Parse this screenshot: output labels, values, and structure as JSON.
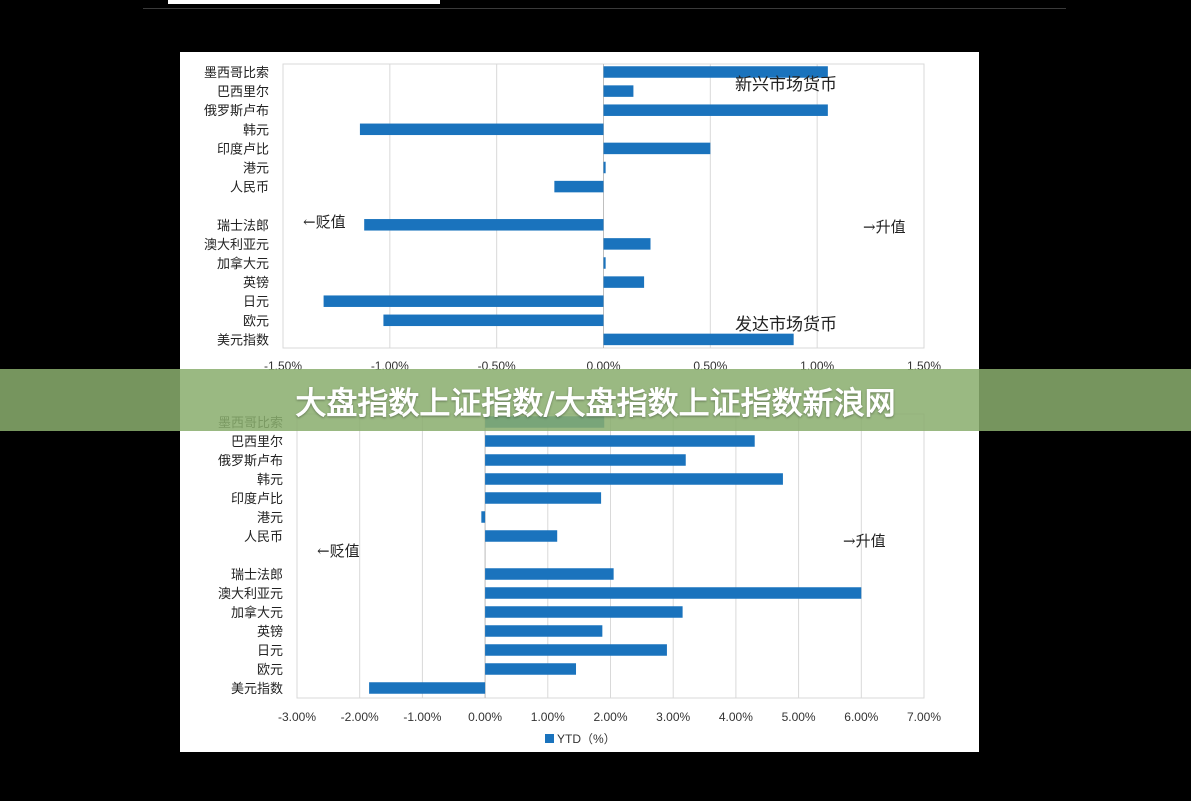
{
  "banner": {
    "title": "大盘指数上证指数/大盘指数上证指数新浪网"
  },
  "colors": {
    "bar": "#1a73bd",
    "grid": "#d9d9d9",
    "banner": "#89ad6e"
  },
  "chart_data": [
    {
      "type": "bar",
      "orientation": "horizontal",
      "categories": [
        "墨西哥比索",
        "巴西里尔",
        "俄罗斯卢布",
        "韩元",
        "印度卢比",
        "港元",
        "人民币",
        "",
        "瑞士法郎",
        "澳大利亚元",
        "加拿大元",
        "英镑",
        "日元",
        "欧元",
        "美元指数"
      ],
      "values": [
        1.05,
        0.14,
        1.05,
        -1.14,
        0.5,
        0.01,
        -0.23,
        null,
        -1.12,
        0.22,
        0.01,
        0.19,
        -1.31,
        -1.03,
        0.89
      ],
      "xlim": [
        -1.5,
        1.5
      ],
      "ticks": [
        "-1.50%",
        "-1.00%",
        "-0.50%",
        "0.00%",
        "0.50%",
        "1.00%",
        "1.50%"
      ],
      "tick_values": [
        -1.5,
        -1.0,
        -0.5,
        0.0,
        0.5,
        1.0,
        1.5
      ],
      "grid": true,
      "annotations": {
        "left": "←贬值",
        "right": "→升值",
        "group_top": "新兴市场货币",
        "group_bottom": "发达市场货币"
      }
    },
    {
      "type": "bar",
      "orientation": "horizontal",
      "categories": [
        "墨西哥比索",
        "巴西里尔",
        "俄罗斯卢布",
        "韩元",
        "印度卢比",
        "港元",
        "人民币",
        "",
        "瑞士法郎",
        "澳大利亚元",
        "加拿大元",
        "英镑",
        "日元",
        "欧元",
        "美元指数"
      ],
      "values": [
        1.9,
        4.3,
        3.2,
        4.75,
        1.85,
        -0.06,
        1.15,
        null,
        2.05,
        6.0,
        3.15,
        1.87,
        2.9,
        1.45,
        -1.85
      ],
      "xlim": [
        -3.0,
        7.0
      ],
      "ticks": [
        "-3.00%",
        "-2.00%",
        "-1.00%",
        "0.00%",
        "1.00%",
        "2.00%",
        "3.00%",
        "4.00%",
        "5.00%",
        "6.00%",
        "7.00%"
      ],
      "tick_values": [
        -3,
        -2,
        -1,
        0,
        1,
        2,
        3,
        4,
        5,
        6,
        7
      ],
      "grid": true,
      "legend": "YTD（%）",
      "annotations": {
        "left": "←贬值",
        "right": "→升值"
      }
    }
  ]
}
